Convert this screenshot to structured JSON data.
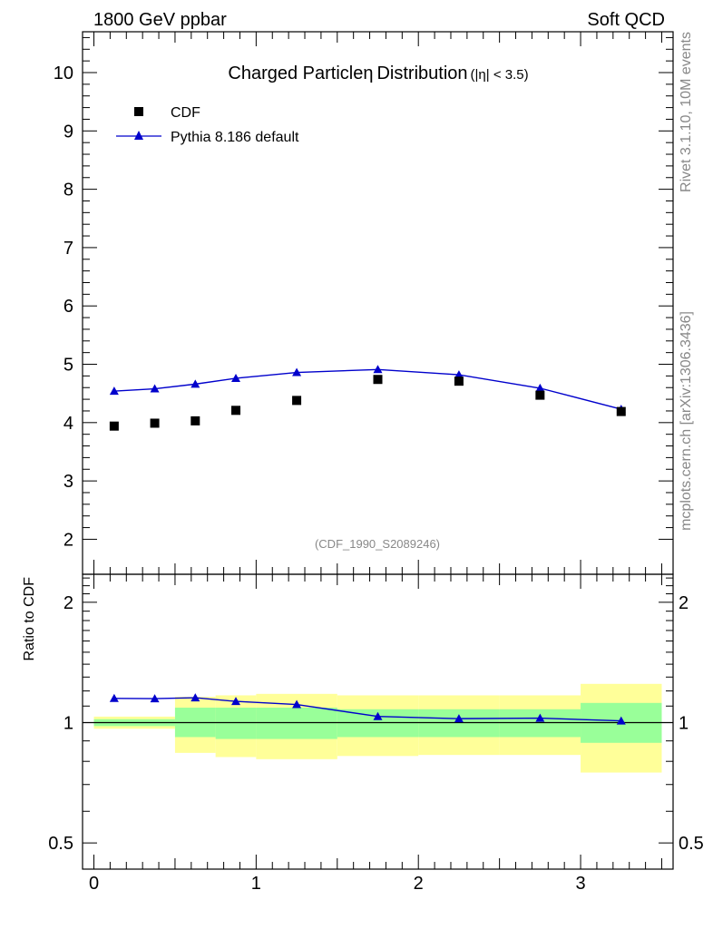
{
  "header": {
    "left": "1800 GeV ppbar",
    "right": "Soft QCD"
  },
  "side_text": {
    "rivet": "Rivet 3.1.10,  10M events",
    "mcplots": "mcplots.cern.ch [arXiv:1306.3436]"
  },
  "chart_data": [
    {
      "type": "scatter",
      "title": "Charged Particle",
      "title_symbol": "η",
      "title_suffix": "Distribution",
      "title_range": "(|η| < 3.5)",
      "watermark": "(CDF_1990_S2089246)",
      "xlabel": "",
      "ylabel": "",
      "xlim": [
        -0.07,
        3.57
      ],
      "ylim": [
        1.4,
        10.7
      ],
      "y_ticks": [
        2,
        3,
        4,
        5,
        6,
        7,
        8,
        9,
        10
      ],
      "y_tick_labels": [
        "2",
        "3",
        "4",
        "5",
        "6",
        "7",
        "8",
        "9",
        "10"
      ],
      "legend": [
        "CDF",
        "Pythia 8.186 default"
      ],
      "legend_position": "top-left",
      "series": [
        {
          "name": "CDF",
          "marker": "square",
          "color": "#000000",
          "x": [
            0.125,
            0.375,
            0.625,
            0.875,
            1.25,
            1.75,
            2.25,
            2.75,
            3.25
          ],
          "values": [
            3.94,
            3.99,
            4.03,
            4.21,
            4.38,
            4.74,
            4.71,
            4.47,
            4.19
          ]
        },
        {
          "name": "Pythia 8.186 default",
          "marker": "triangle",
          "color": "#0000cc",
          "x": [
            0.125,
            0.375,
            0.625,
            0.875,
            1.25,
            1.75,
            2.25,
            2.75,
            3.25
          ],
          "values": [
            4.54,
            4.58,
            4.66,
            4.76,
            4.86,
            4.91,
            4.82,
            4.59,
            4.23
          ]
        }
      ]
    },
    {
      "type": "line",
      "title": "",
      "xlabel": "",
      "ylabel": "Ratio to CDF",
      "xlim": [
        -0.07,
        3.57
      ],
      "ylim": [
        0.43,
        2.35
      ],
      "y_scale": "log",
      "y_ticks": [
        0.5,
        1,
        2
      ],
      "y_tick_labels": [
        "0.5",
        "1",
        "2"
      ],
      "x_ticks": [
        0,
        1,
        2,
        3
      ],
      "x_tick_labels": [
        "0",
        "1",
        "2",
        "3"
      ],
      "reference_line": 1,
      "bins": [
        [
          0,
          0.5
        ],
        [
          0.5,
          0.75
        ],
        [
          0.75,
          1.0
        ],
        [
          1.0,
          1.5
        ],
        [
          1.5,
          2.0
        ],
        [
          2.0,
          2.5
        ],
        [
          2.5,
          3.0
        ],
        [
          3.0,
          3.5
        ]
      ],
      "band_inner": [
        [
          0.98,
          1.02
        ],
        [
          0.92,
          1.09
        ],
        [
          0.91,
          1.09
        ],
        [
          0.91,
          1.09
        ],
        [
          0.92,
          1.08
        ],
        [
          0.92,
          1.08
        ],
        [
          0.92,
          1.08
        ],
        [
          0.89,
          1.12
        ]
      ],
      "band_outer": [
        [
          0.965,
          1.035
        ],
        [
          0.84,
          1.16
        ],
        [
          0.82,
          1.17
        ],
        [
          0.81,
          1.18
        ],
        [
          0.825,
          1.17
        ],
        [
          0.83,
          1.17
        ],
        [
          0.83,
          1.17
        ],
        [
          0.75,
          1.25
        ]
      ],
      "band_colors": {
        "inner": "#99ff99",
        "outer": "#ffff99"
      },
      "series": [
        {
          "name": "Pythia 8.186 default",
          "color": "#0000cc",
          "x": [
            0.125,
            0.375,
            0.625,
            0.875,
            1.25,
            1.75,
            2.25,
            2.75,
            3.25
          ],
          "values": [
            1.15,
            1.148,
            1.154,
            1.13,
            1.11,
            1.036,
            1.023,
            1.026,
            1.01
          ]
        }
      ]
    }
  ]
}
